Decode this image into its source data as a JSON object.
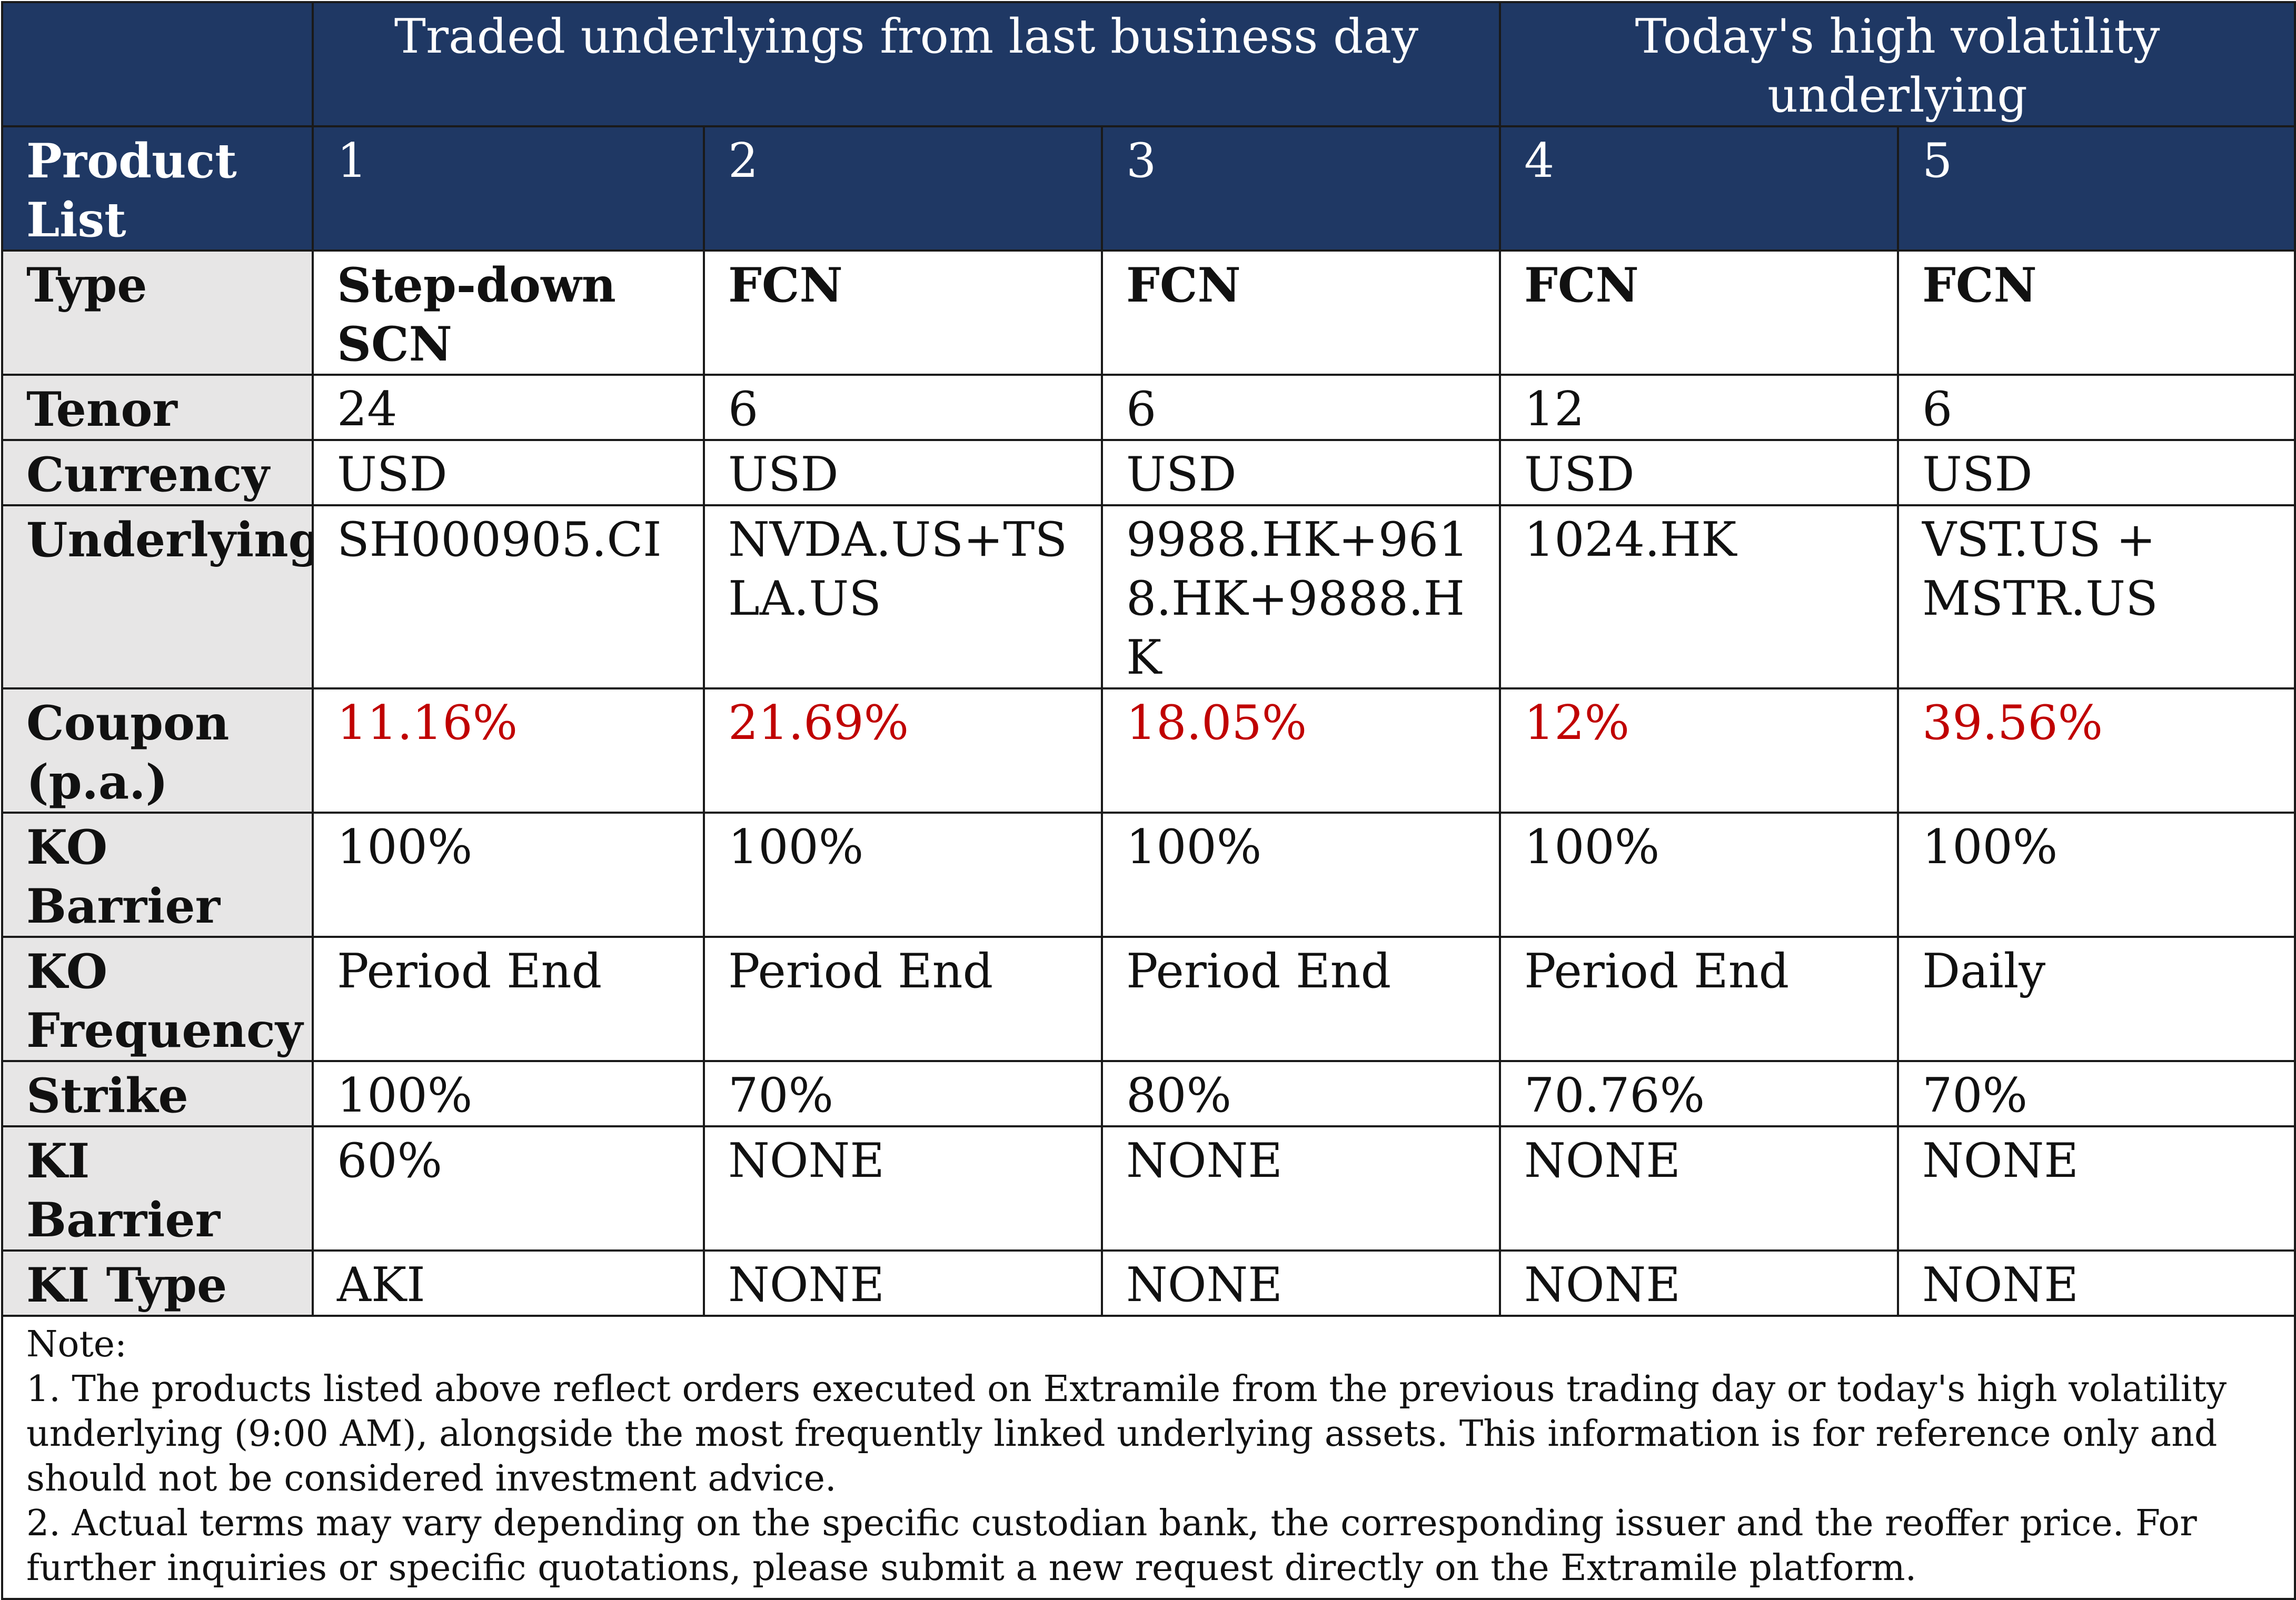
{
  "header": {
    "group_left": "Traded underlyings from last business day",
    "group_right": "Today's high volatility underlying",
    "product_list_label": "Product List",
    "product_numbers": [
      "1",
      "2",
      "3",
      "4",
      "5"
    ]
  },
  "rows": [
    {
      "label": "Type",
      "values": [
        "Step-down SCN",
        "FCN",
        "FCN",
        "FCN",
        "FCN"
      ]
    },
    {
      "label": "Tenor",
      "values": [
        "24",
        "6",
        "6",
        "12",
        "6"
      ]
    },
    {
      "label": "Currency",
      "values": [
        "USD",
        "USD",
        "USD",
        "USD",
        "USD"
      ]
    },
    {
      "label": "Underlying",
      "values": [
        "SH000905.CI",
        "NVDA.US+TSLA.US",
        "9988.HK+9618.HK+9888.HK",
        "1024.HK",
        "VST.US + MSTR.US"
      ]
    },
    {
      "label": "Coupon (p.a.)",
      "values": [
        "11.16%",
        "21.69%",
        "18.05%",
        "12%",
        "39.56%"
      ]
    },
    {
      "label": "KO Barrier",
      "values": [
        "100%",
        "100%",
        "100%",
        "100%",
        "100%"
      ]
    },
    {
      "label": "KO Frequency",
      "values": [
        "Period End",
        "Period End",
        "Period End",
        "Period End",
        "Daily"
      ]
    },
    {
      "label": "Strike",
      "values": [
        "100%",
        "70%",
        "80%",
        "70.76%",
        "70%"
      ]
    },
    {
      "label": "KI Barrier",
      "values": [
        "60%",
        "NONE",
        "NONE",
        "NONE",
        "NONE"
      ]
    },
    {
      "label": "KI Type",
      "values": [
        "AKI",
        "NONE",
        "NONE",
        "NONE",
        "NONE"
      ]
    }
  ],
  "notes": {
    "title": "Note:",
    "items": [
      "1. The products listed above reflect orders executed on Extramile from the previous trading day or today's high volatility underlying (9:00 AM), alongside the most frequently linked underlying assets. This information is for reference only and should not be considered investment advice.",
      "2. Actual terms may vary depending on the specific custodian bank, the corresponding issuer and the reoffer price. For further inquiries or specific quotations, please submit a new request directly on the Extramile platform."
    ]
  },
  "colors": {
    "header_bg": "#1f3864",
    "header_text": "#ffffff",
    "label_bg": "#e7e6e6",
    "coupon_text": "#c00000"
  }
}
